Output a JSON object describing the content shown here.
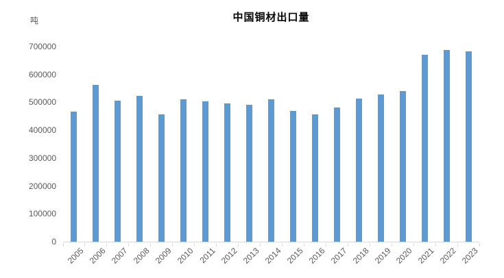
{
  "chart_data": {
    "type": "bar",
    "title": "中国铜材出口量",
    "unit_label": "吨",
    "xlabel": "",
    "ylabel": "吨",
    "categories": [
      "2005",
      "2006",
      "2007",
      "2008",
      "2009",
      "2010",
      "2011",
      "2012",
      "2013",
      "2014",
      "2015",
      "2016",
      "2017",
      "2018",
      "2019",
      "2020",
      "2021",
      "2022",
      "2023"
    ],
    "values": [
      467000,
      563000,
      505000,
      522000,
      458000,
      511000,
      504000,
      497000,
      492000,
      511000,
      468000,
      457000,
      481000,
      514000,
      528000,
      540000,
      670000,
      688000,
      683000
    ],
    "ylim": [
      0,
      700000
    ],
    "yticks": [
      0,
      100000,
      200000,
      300000,
      400000,
      500000,
      600000,
      700000
    ],
    "grid": false,
    "legend": null,
    "colors": {
      "bar": "#5B9BD5",
      "axis": "#D9D9D9",
      "tick_label": "#595959",
      "title": "#000000",
      "background": "#FFFFFF"
    }
  }
}
